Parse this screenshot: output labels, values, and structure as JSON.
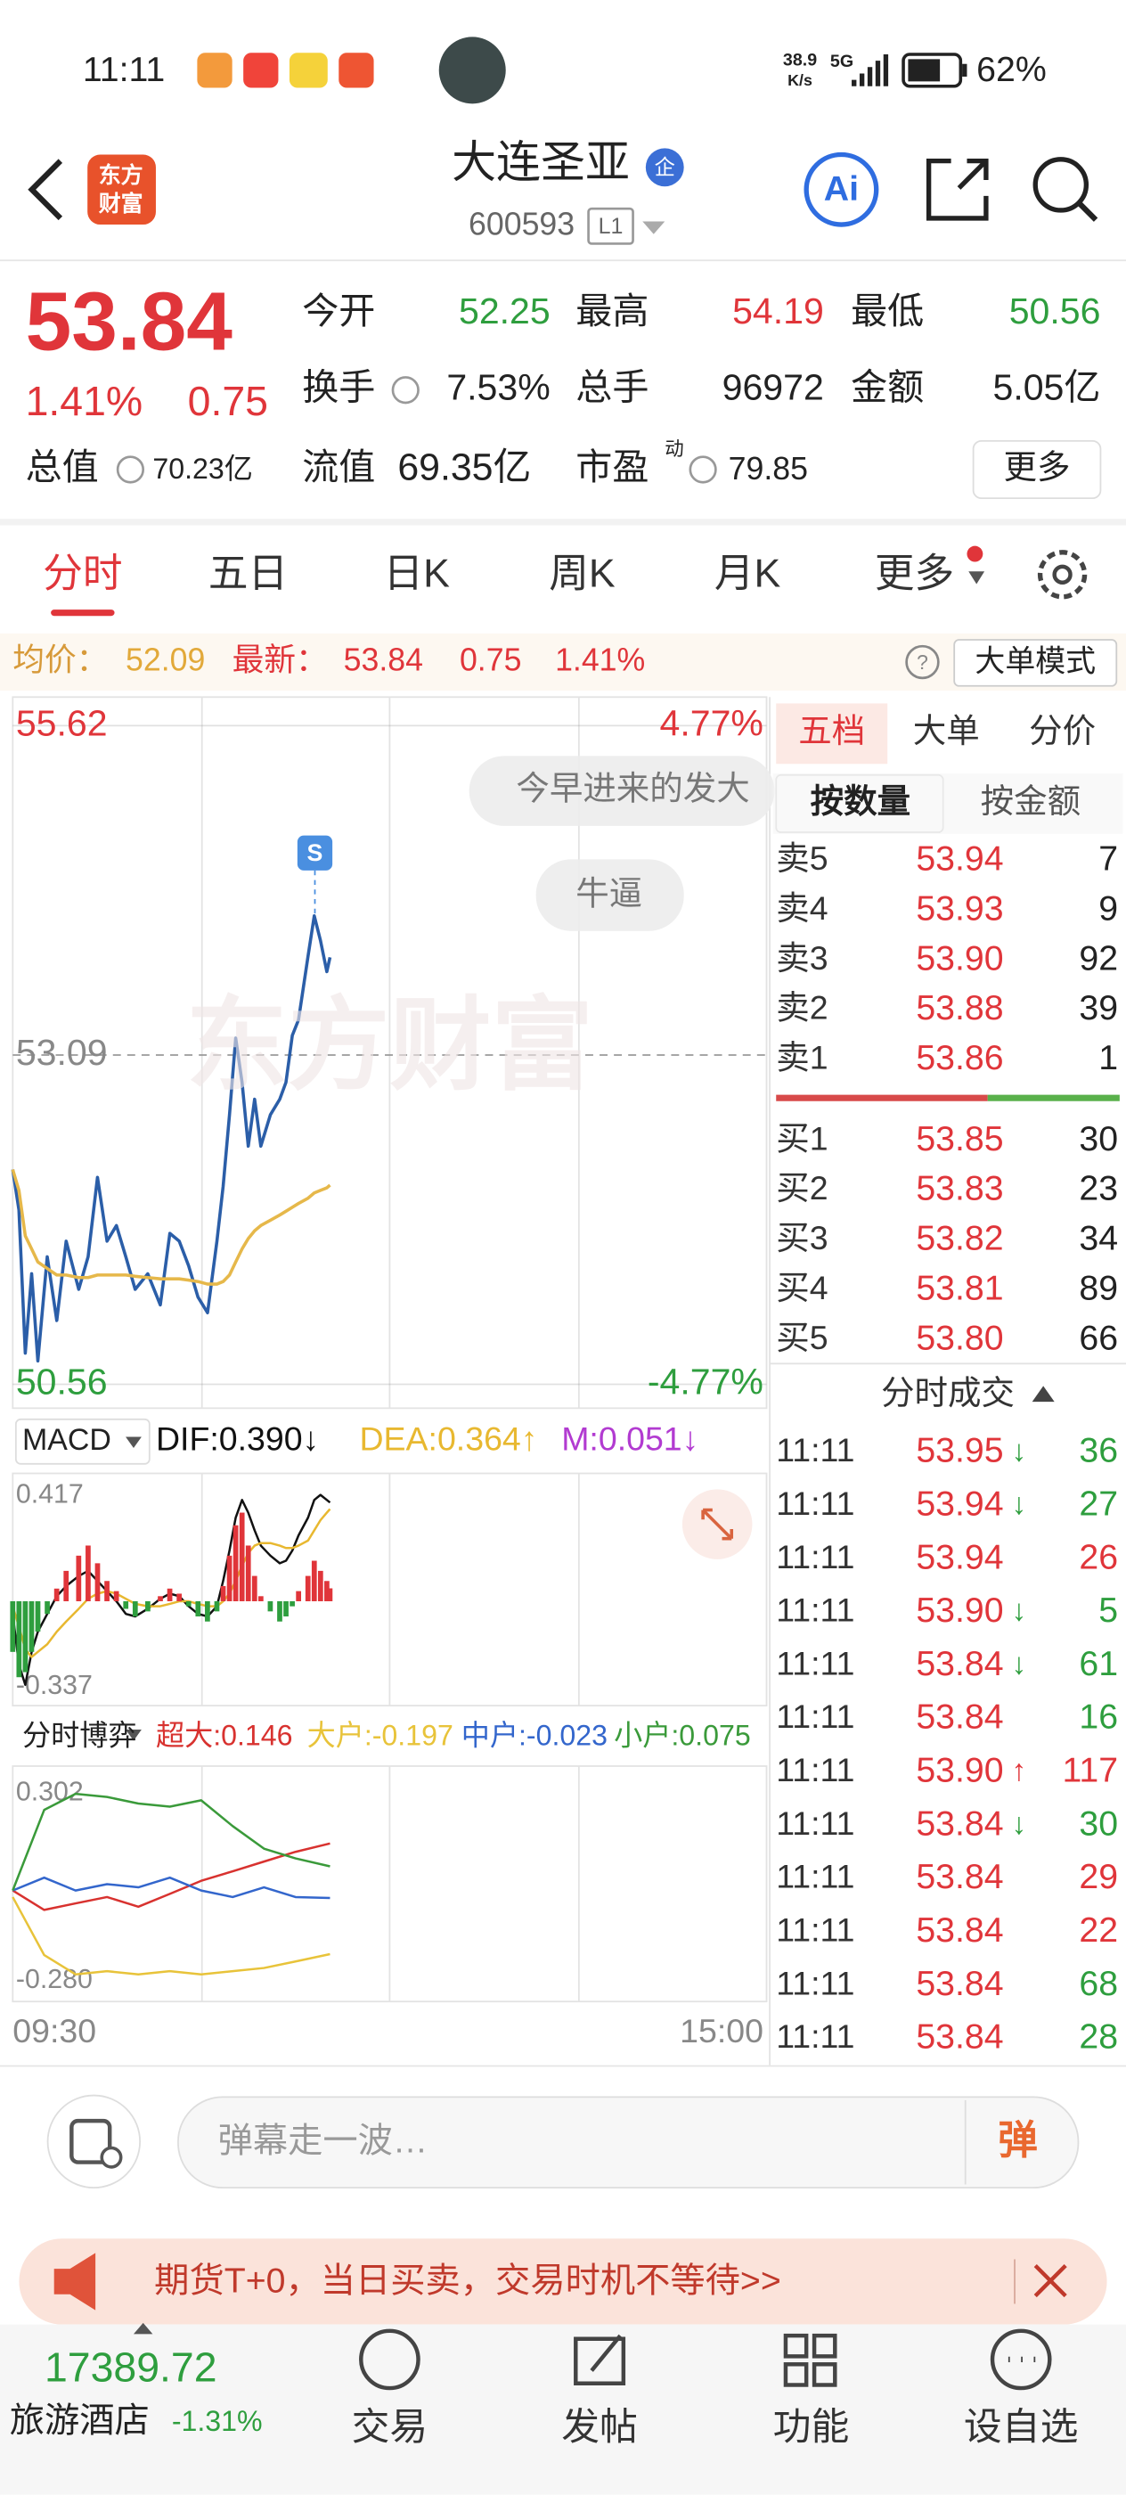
{
  "status_bar": {
    "time": "11:11",
    "speed": "38.9",
    "speed_unit": "K/s",
    "network": "5G",
    "battery": "62%"
  },
  "header": {
    "logo": [
      "东方",
      "财富"
    ],
    "name": "大连圣亚",
    "badge": "企",
    "code": "600593",
    "level": "L1",
    "ai": "Ai"
  },
  "quote": {
    "price": "53.84",
    "change_pct": "1.41%",
    "change": "0.75",
    "fields": [
      {
        "label": "今开",
        "value": "52.25",
        "color": "#2e9e3e"
      },
      {
        "label": "最高",
        "value": "54.19",
        "color": "#e0353a"
      },
      {
        "label": "最低",
        "value": "50.56",
        "color": "#2e9e3e"
      },
      {
        "label": "换手",
        "value": "7.53%",
        "color": "#222222"
      },
      {
        "label": "总手",
        "value": "96972",
        "color": "#222222"
      },
      {
        "label": "金额",
        "value": "5.05亿",
        "color": "#222222"
      }
    ],
    "total_value": {
      "label": "总值",
      "value": "70.23亿"
    },
    "float_value": {
      "label": "流值",
      "value": "69.35亿"
    },
    "pe": {
      "label": "市盈",
      "tag": "动",
      "value": "79.85"
    },
    "more": "更多"
  },
  "tabs": [
    "分时",
    "五日",
    "日K",
    "周K",
    "月K",
    "更多"
  ],
  "info_bar": {
    "avg_label": "均价：",
    "avg": "52.09",
    "last_label": "最新：",
    "last": "53.84",
    "change": "0.75",
    "change_pct": "1.41%",
    "mode": "大单模式"
  },
  "chart_data": [
    {
      "type": "line",
      "x": [
        "09:30",
        "09:32",
        "09:34",
        "09:36",
        "09:38",
        "09:41",
        "09:44",
        "09:47",
        "09:51",
        "09:54",
        "09:57",
        "10:00",
        "10:03",
        "10:06",
        "10:09",
        "10:13",
        "10:17",
        "10:20",
        "10:23",
        "10:26",
        "10:29",
        "10:32",
        "10:35",
        "10:37",
        "10:39",
        "10:41",
        "10:43",
        "10:45",
        "10:47",
        "10:49",
        "10:52",
        "10:55",
        "10:57",
        "10:59",
        "11:01",
        "11:04",
        "11:06",
        "11:08",
        "11:10",
        "11:11"
      ],
      "xlim": [
        "09:30",
        "15:00"
      ],
      "xticks": [
        "09:30",
        "15:00"
      ],
      "ylim": [
        50.56,
        55.62
      ],
      "yticks": [
        55.62,
        53.09,
        50.56
      ],
      "grid": true,
      "y2lim": [
        -4.77,
        4.77
      ],
      "y2ticks": [
        {
          "value": 4.77,
          "label": "4.77%"
        },
        {
          "value": -4.77,
          "label": "-4.77%"
        }
      ],
      "series": [
        {
          "color": "#2b5ea8",
          "values": [
            52.21,
            51.9,
            50.8,
            51.41,
            50.74,
            51.54,
            51.05,
            51.66,
            51.29,
            51.54,
            52.15,
            51.66,
            51.78,
            51.54,
            51.29,
            51.41,
            51.17,
            51.72,
            51.66,
            51.47,
            51.23,
            51.11,
            51.66,
            52.08,
            52.63,
            53.22,
            52.88,
            52.39,
            52.75,
            52.39,
            52.63,
            52.75,
            52.88,
            53.24,
            53.36,
            53.85,
            54.16,
            53.97,
            53.73,
            53.84
          ]
        },
        {
          "color": "#e6b84a",
          "values": [
            52.21,
            52.05,
            51.7,
            51.6,
            51.5,
            51.45,
            51.4,
            51.4,
            51.38,
            51.38,
            51.4,
            51.4,
            51.4,
            51.4,
            51.39,
            51.38,
            51.37,
            51.37,
            51.37,
            51.36,
            51.35,
            51.33,
            51.33,
            51.35,
            51.4,
            51.5,
            51.6,
            51.68,
            51.74,
            51.78,
            51.82,
            51.86,
            51.89,
            51.92,
            51.95,
            51.99,
            52.03,
            52.05,
            52.07,
            52.09
          ]
        }
      ]
    },
    {
      "type": "macd",
      "title": "MACD",
      "x": [
        "09:30",
        "09:32",
        "09:34",
        "09:36",
        "09:38",
        "09:41",
        "09:44",
        "09:47",
        "09:51",
        "09:54",
        "09:57",
        "10:00",
        "10:03",
        "10:06",
        "10:09",
        "10:13",
        "10:17",
        "10:20",
        "10:23",
        "10:26",
        "10:29",
        "10:32",
        "10:35",
        "10:37",
        "10:39",
        "10:41",
        "10:43",
        "10:45",
        "10:47",
        "10:49",
        "10:52",
        "10:55",
        "10:57",
        "10:59",
        "11:01",
        "11:04",
        "11:06",
        "11:08",
        "11:10",
        "11:11"
      ],
      "xlim": [
        "09:30",
        "15:00"
      ],
      "ylim": [
        -0.337,
        0.417
      ],
      "yticks": [
        0.417,
        -0.337
      ],
      "series": [
        {
          "name": "DIF:0.390↓",
          "color": "#111111",
          "values": [
            -0.05,
            -0.25,
            -0.33,
            -0.2,
            -0.12,
            -0.05,
            0.02,
            0.06,
            0.1,
            0.12,
            0.08,
            0.04,
            0.0,
            -0.05,
            -0.06,
            -0.03,
            0.01,
            0.03,
            0.02,
            -0.02,
            -0.05,
            -0.06,
            -0.02,
            0.08,
            0.2,
            0.33,
            0.4,
            0.35,
            0.28,
            0.22,
            0.18,
            0.15,
            0.16,
            0.2,
            0.26,
            0.33,
            0.4,
            0.42,
            0.4,
            0.39
          ]
        },
        {
          "name": "DEA:0.364↑",
          "color": "#e8b830",
          "values": [
            -0.02,
            -0.1,
            -0.19,
            -0.22,
            -0.2,
            -0.17,
            -0.12,
            -0.08,
            -0.03,
            0.01,
            0.03,
            0.04,
            0.03,
            0.01,
            -0.01,
            -0.02,
            -0.02,
            -0.01,
            0.0,
            0.0,
            -0.01,
            -0.02,
            -0.02,
            0.0,
            0.03,
            0.08,
            0.14,
            0.19,
            0.22,
            0.23,
            0.23,
            0.22,
            0.21,
            0.21,
            0.22,
            0.24,
            0.28,
            0.32,
            0.35,
            0.364
          ]
        },
        {
          "name": "M:0.051↓",
          "type": "bar",
          "color": "#b23bd1",
          "up_color": "#e0353a",
          "down_color": "#2e9e3e",
          "values": [
            -0.2,
            -0.3,
            -0.28,
            -0.2,
            -0.12,
            -0.05,
            0.05,
            0.12,
            0.18,
            0.22,
            0.15,
            0.08,
            0.04,
            -0.03,
            -0.06,
            -0.04,
            0.02,
            0.05,
            0.03,
            -0.02,
            -0.06,
            -0.08,
            -0.04,
            0.06,
            0.18,
            0.3,
            0.35,
            0.22,
            0.1,
            0.02,
            -0.04,
            -0.08,
            -0.06,
            -0.02,
            0.04,
            0.1,
            0.16,
            0.12,
            0.08,
            0.051
          ]
        }
      ]
    },
    {
      "type": "line",
      "title": "分时博弈",
      "x": [
        "09:30",
        "09:40",
        "09:50",
        "10:00",
        "10:10",
        "10:20",
        "10:30",
        "10:40",
        "10:50",
        "11:00",
        "11:11"
      ],
      "xlim": [
        "09:30",
        "15:00"
      ],
      "ylim": [
        -0.28,
        0.302
      ],
      "yticks": [
        0.302,
        {
          "value": -0.28,
          "label": "-0.280"
        }
      ],
      "series": [
        {
          "name": "超大:0.146",
          "color": "#d8322f",
          "values": [
            0.0,
            -0.06,
            -0.04,
            -0.02,
            -0.05,
            -0.01,
            0.03,
            0.06,
            0.09,
            0.12,
            0.146
          ]
        },
        {
          "name": "大户:-0.197",
          "color": "#e8c33a",
          "values": [
            -0.02,
            -0.2,
            -0.26,
            -0.25,
            -0.26,
            -0.25,
            -0.26,
            -0.25,
            -0.24,
            -0.22,
            -0.197
          ]
        },
        {
          "name": "中户:-0.023",
          "color": "#3366cc",
          "values": [
            0.0,
            0.04,
            0.0,
            0.02,
            0.01,
            0.04,
            0.0,
            -0.02,
            0.01,
            -0.02,
            -0.023
          ]
        },
        {
          "name": "小户:0.075",
          "color": "#3a9a3a",
          "values": [
            0.0,
            0.25,
            0.3,
            0.29,
            0.27,
            0.26,
            0.28,
            0.2,
            0.13,
            0.1,
            0.075
          ]
        }
      ]
    }
  ],
  "danmaku": [
    "今早进来的发大",
    "牛逼"
  ],
  "signal": "S",
  "watermark": "东方财富",
  "order_book": {
    "tabs": [
      "五档",
      "大单",
      "分价"
    ],
    "subtabs": [
      "按数量",
      "按金额"
    ],
    "asks": [
      {
        "label": "卖5",
        "price": "53.94",
        "volume": "7"
      },
      {
        "label": "卖4",
        "price": "53.93",
        "volume": "9"
      },
      {
        "label": "卖3",
        "price": "53.90",
        "volume": "92"
      },
      {
        "label": "卖2",
        "price": "53.88",
        "volume": "39"
      },
      {
        "label": "卖1",
        "price": "53.86",
        "volume": "1"
      }
    ],
    "bids": [
      {
        "label": "买1",
        "price": "53.85",
        "volume": "30"
      },
      {
        "label": "买2",
        "price": "53.83",
        "volume": "23"
      },
      {
        "label": "买3",
        "price": "53.82",
        "volume": "34"
      },
      {
        "label": "买4",
        "price": "53.81",
        "volume": "89"
      },
      {
        "label": "买5",
        "price": "53.80",
        "volume": "66"
      }
    ],
    "trades_title": "分时成交"
  },
  "trades": [
    {
      "time": "11:11",
      "price": "53.95",
      "arrow": "↓",
      "volume": "36",
      "color": "#2e9e3e"
    },
    {
      "time": "11:11",
      "price": "53.94",
      "arrow": "↓",
      "volume": "27",
      "color": "#2e9e3e"
    },
    {
      "time": "11:11",
      "price": "53.94",
      "volume": "26",
      "color": "#e0353a"
    },
    {
      "time": "11:11",
      "price": "53.90",
      "arrow": "↓",
      "volume": "5",
      "color": "#2e9e3e"
    },
    {
      "time": "11:11",
      "price": "53.84",
      "arrow": "↓",
      "volume": "61",
      "color": "#2e9e3e"
    },
    {
      "time": "11:11",
      "price": "53.84",
      "volume": "16",
      "color": "#2e9e3e"
    },
    {
      "time": "11:11",
      "price": "53.90",
      "arrow": "↑",
      "volume": "117",
      "color": "#e0353a"
    },
    {
      "time": "11:11",
      "price": "53.84",
      "arrow": "↓",
      "volume": "30",
      "color": "#2e9e3e"
    },
    {
      "time": "11:11",
      "price": "53.84",
      "volume": "29",
      "color": "#e0353a"
    },
    {
      "time": "11:11",
      "price": "53.84",
      "volume": "22",
      "color": "#e0353a"
    },
    {
      "time": "11:11",
      "price": "53.84",
      "volume": "68",
      "color": "#2e9e3e"
    },
    {
      "time": "11:11",
      "price": "53.84",
      "volume": "28",
      "color": "#2e9e3e"
    }
  ],
  "comment": {
    "placeholder": "弹幕走一波…",
    "button": "弹"
  },
  "banner": {
    "text": "期货T+0，当日买卖，交易时机不等待>>"
  },
  "bottom_nav": {
    "index_value": "17389.72",
    "index_name": "旅游酒店",
    "index_change": "-1.31%",
    "items": [
      "交易",
      "发帖",
      "功能",
      "设自选"
    ]
  }
}
